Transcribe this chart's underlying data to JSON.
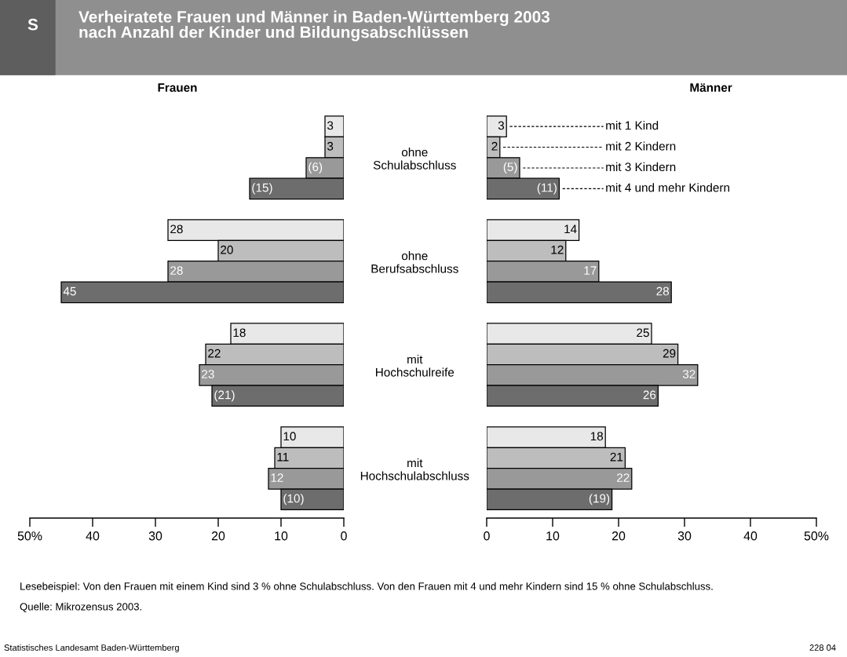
{
  "chart_data": [
    {
      "type": "bar",
      "orientation": "horizontal",
      "title": "Verheiratete Frauen und Männer in Baden-Württemberg 2003\nnach Anzahl der Kinder und Bildungsabschlüssen",
      "subtitle": "Frauen",
      "categories": [
        "ohne\nSchulabschluss",
        "ohne\nBerufsabschluss",
        "mit\nHochschulreife",
        "mit\nHochschulabschluss"
      ],
      "series": [
        {
          "color": "#e8e8e8",
          "values": [
            3,
            28,
            18,
            10
          ],
          "value_labels": [
            "3",
            "28",
            "18",
            "10"
          ]
        },
        {
          "color": "#bdbdbd",
          "values": [
            3,
            20,
            22,
            11
          ],
          "value_labels": [
            "3",
            "20",
            "22",
            "11"
          ]
        },
        {
          "color": "#999999",
          "values": [
            6,
            28,
            23,
            12
          ],
          "value_labels": [
            "(6)",
            "28",
            "23",
            "12"
          ]
        },
        {
          "color": "#6d6d6d",
          "values": [
            15,
            45,
            21,
            10
          ],
          "value_labels": [
            "(15)",
            "45",
            "(21)",
            "(10)"
          ]
        }
      ],
      "xlim": [
        50,
        0
      ],
      "xticks": [
        {
          "value": 50,
          "label": "50%"
        },
        40,
        30,
        20,
        10,
        0
      ],
      "tick_labels": "xy",
      "grid": false,
      "annotations": [
        "S",
        "Lesebeispiel: Von den Frauen mit einem Kind sind 3 % ohne Schulabschluss. Von den Frauen mit 4 und mehr Kindern sind 15 % ohne Schulabschluss.",
        "Quelle: Mikrozensus 2003.",
        "Statistisches Landesamt Baden-Württemberg",
        "228 04"
      ]
    },
    {
      "type": "bar",
      "orientation": "horizontal",
      "subtitle": "Männer",
      "categories": [
        null,
        null,
        null,
        null
      ],
      "series": [
        {
          "name": "mit 1 Kind",
          "color": "#e8e8e8",
          "values": [
            3,
            14,
            25,
            18
          ],
          "value_labels": [
            "3",
            "14",
            "25",
            "18"
          ]
        },
        {
          "name": "mit 2 Kindern",
          "color": "#bdbdbd",
          "values": [
            2,
            12,
            29,
            21
          ],
          "value_labels": [
            "2",
            "12",
            "29",
            "21"
          ]
        },
        {
          "name": "mit 3 Kindern",
          "color": "#999999",
          "values": [
            5,
            17,
            32,
            22
          ],
          "value_labels": [
            "(5)",
            "17",
            "32",
            "22"
          ]
        },
        {
          "name": "mit 4 und mehr Kindern",
          "color": "#6d6d6d",
          "values": [
            11,
            28,
            26,
            19
          ],
          "value_labels": [
            "(11)",
            "28",
            "26",
            "(19)"
          ]
        }
      ],
      "xlim": [
        0,
        50
      ],
      "xticks": [
        0,
        10,
        20,
        30,
        40,
        {
          "value": 50,
          "label": "50%"
        }
      ],
      "tick_labels": "x",
      "grid": false
    }
  ]
}
